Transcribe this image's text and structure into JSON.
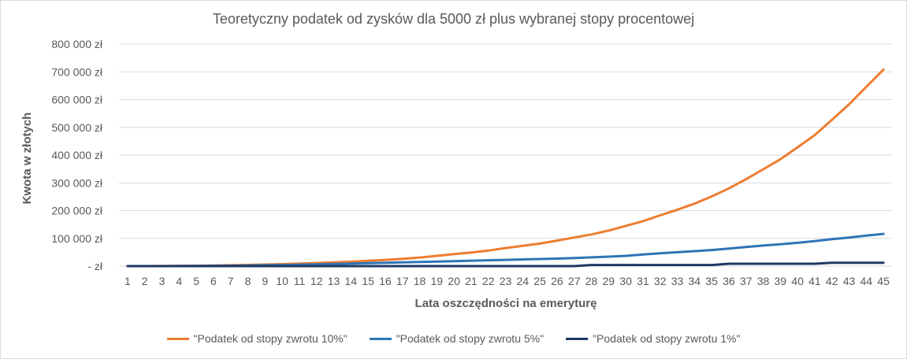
{
  "chart_data": {
    "type": "line",
    "title": "Teoretyczny podatek od zysków dla 5000 zł plus wybranej stopy procentowej",
    "xlabel": "Lata oszczędności na emeryturę",
    "ylabel": "Kwota w złotych",
    "ylim": [
      0,
      800000
    ],
    "yticks": [
      0,
      100000,
      200000,
      300000,
      400000,
      500000,
      600000,
      700000,
      800000
    ],
    "ytick_labels": [
      "- zł",
      "100 000 zł",
      "200 000 zł",
      "300 000 zł",
      "400 000 zł",
      "500 000 zł",
      "600 000 zł",
      "700 000 zł",
      "800 000 zł"
    ],
    "grid": true,
    "legend_position": "bottom",
    "categories": [
      "1",
      "2",
      "3",
      "4",
      "5",
      "6",
      "7",
      "8",
      "9",
      "10",
      "11",
      "12",
      "13",
      "14",
      "15",
      "16",
      "17",
      "18",
      "19",
      "20",
      "21",
      "22",
      "23",
      "24",
      "25",
      "26",
      "27",
      "28",
      "29",
      "30",
      "31",
      "32",
      "33",
      "34",
      "35",
      "36",
      "37",
      "38",
      "39",
      "40",
      "41",
      "42",
      "43",
      "44",
      "45"
    ],
    "series": [
      {
        "name": "\"Podatek od stopy zwrotu 10%\"",
        "color": "#ed7d31",
        "values": [
          0,
          0,
          200,
          600,
          1200,
          2000,
          3000,
          4200,
          5600,
          7200,
          9000,
          11000,
          13500,
          16000,
          19000,
          22500,
          26000,
          31000,
          37000,
          43000,
          49000,
          56000,
          65000,
          73000,
          81000,
          92000,
          103000,
          114000,
          128000,
          145000,
          162000,
          183000,
          203000,
          225000,
          251000,
          280000,
          313000,
          349000,
          385000,
          428000,
          472000,
          527000,
          583000,
          646000,
          708000
        ]
      },
      {
        "name": "\"Podatek od stopy zwrotu 5%\"",
        "color": "#2e75b6",
        "values": [
          0,
          0,
          100,
          300,
          600,
          1000,
          1500,
          2200,
          3000,
          4000,
          5000,
          6200,
          7500,
          9000,
          10500,
          12000,
          13500,
          15000,
          16500,
          18000,
          19500,
          21000,
          22500,
          24000,
          25500,
          27000,
          29000,
          31500,
          34000,
          37000,
          42000,
          46000,
          50000,
          54000,
          58000,
          63000,
          69000,
          74000,
          79000,
          84000,
          90000,
          97000,
          103000,
          110000,
          116000
        ]
      },
      {
        "name": "\"Podatek od stopy zwrotu 1%\"",
        "color": "#1f3864",
        "values": [
          0,
          0,
          0,
          0,
          0,
          0,
          0,
          0,
          0,
          0,
          0,
          0,
          0,
          0,
          0,
          0,
          0,
          0,
          0,
          0,
          0,
          0,
          0,
          0,
          0,
          0,
          0,
          4000,
          4000,
          4000,
          4000,
          4000,
          4000,
          4000,
          4000,
          8500,
          8500,
          8500,
          8500,
          8500,
          8500,
          12000,
          12000,
          12000,
          12000
        ]
      }
    ]
  }
}
